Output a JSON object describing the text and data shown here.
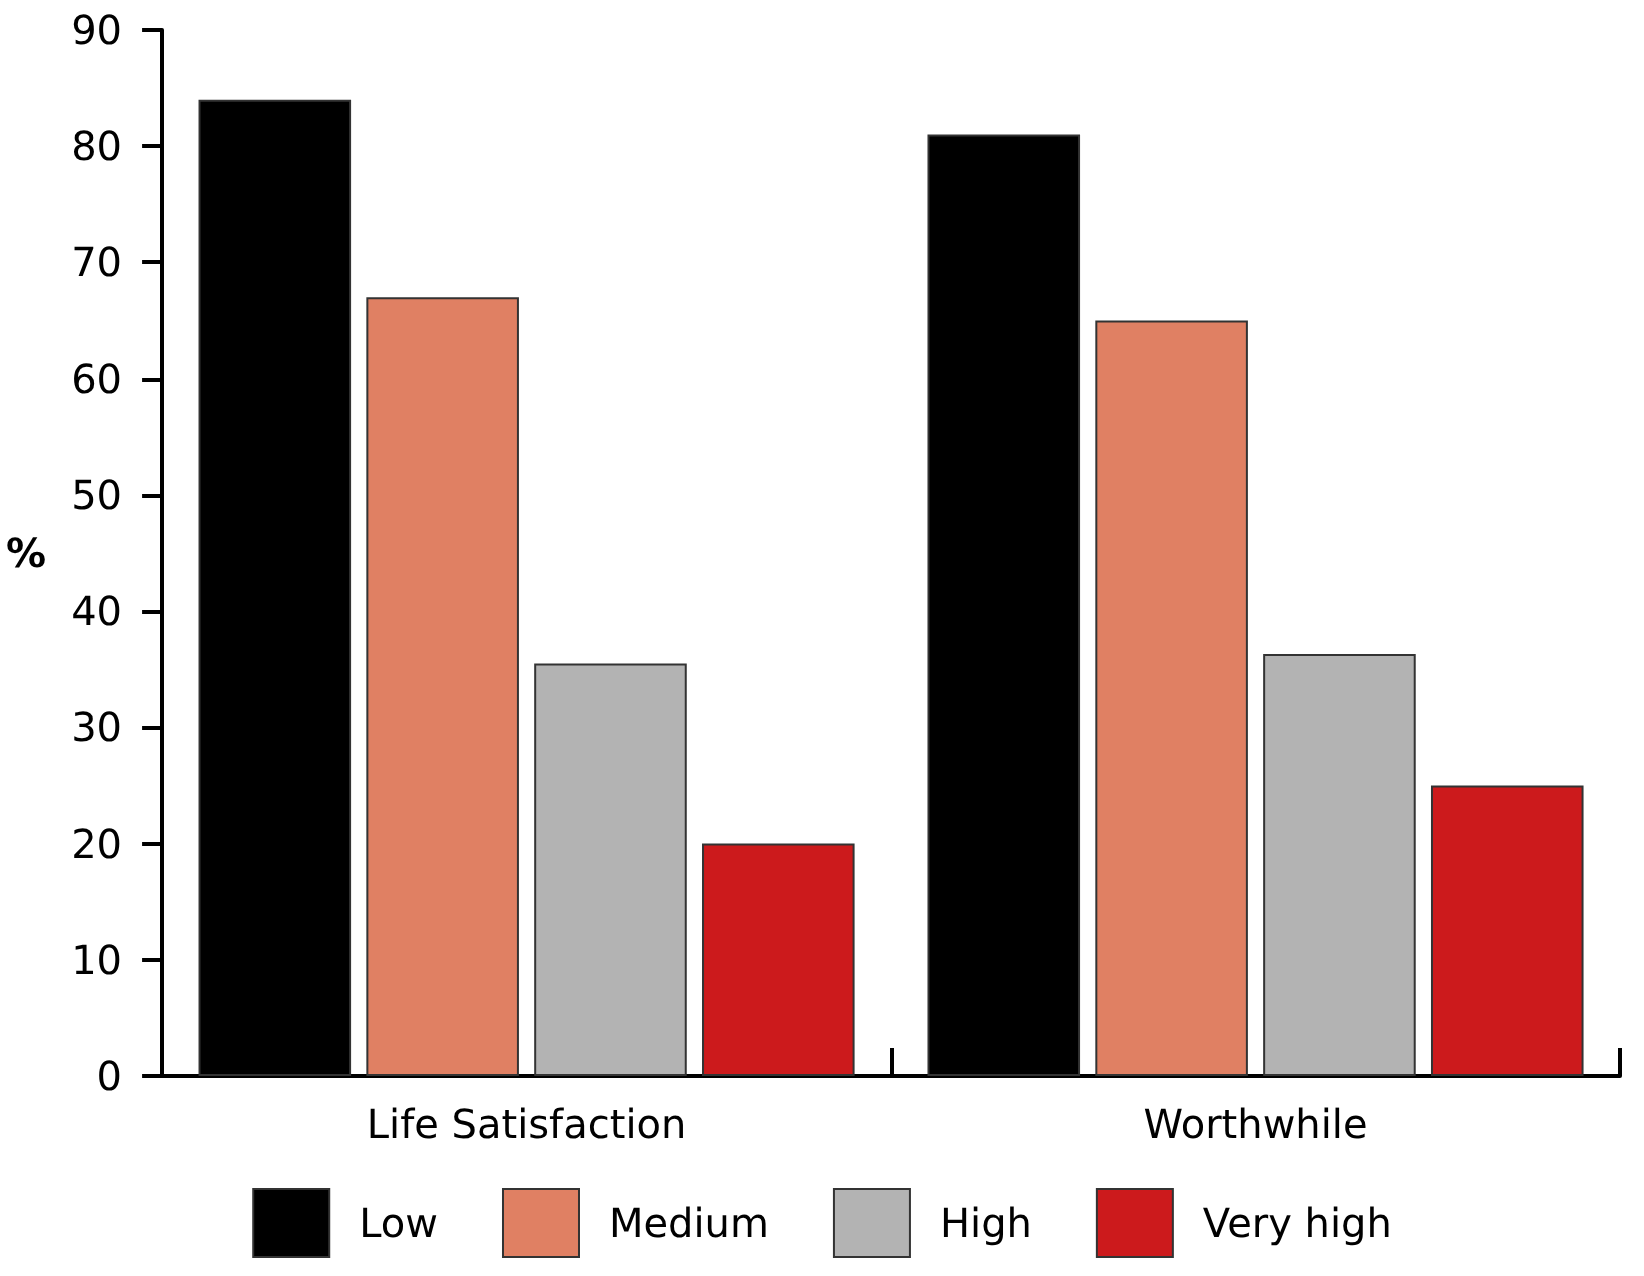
{
  "chart_data": {
    "type": "bar",
    "ylabel": "%",
    "categories": [
      "Life Satisfaction",
      "Worthwhile"
    ],
    "series": [
      {
        "name": "Low",
        "color": "#000000",
        "values": [
          84,
          81
        ]
      },
      {
        "name": "Medium",
        "color": "#e08063",
        "values": [
          67,
          65
        ]
      },
      {
        "name": "High",
        "color": "#b3b3b3",
        "values": [
          35.5,
          36.3
        ]
      },
      {
        "name": "Very high",
        "color": "#cc1a1c",
        "values": [
          20,
          25
        ]
      }
    ],
    "ylim": [
      0,
      90
    ],
    "yticks": [
      0,
      10,
      20,
      30,
      40,
      50,
      60,
      70,
      80,
      90
    ],
    "grid": false,
    "legend": "bottom"
  }
}
